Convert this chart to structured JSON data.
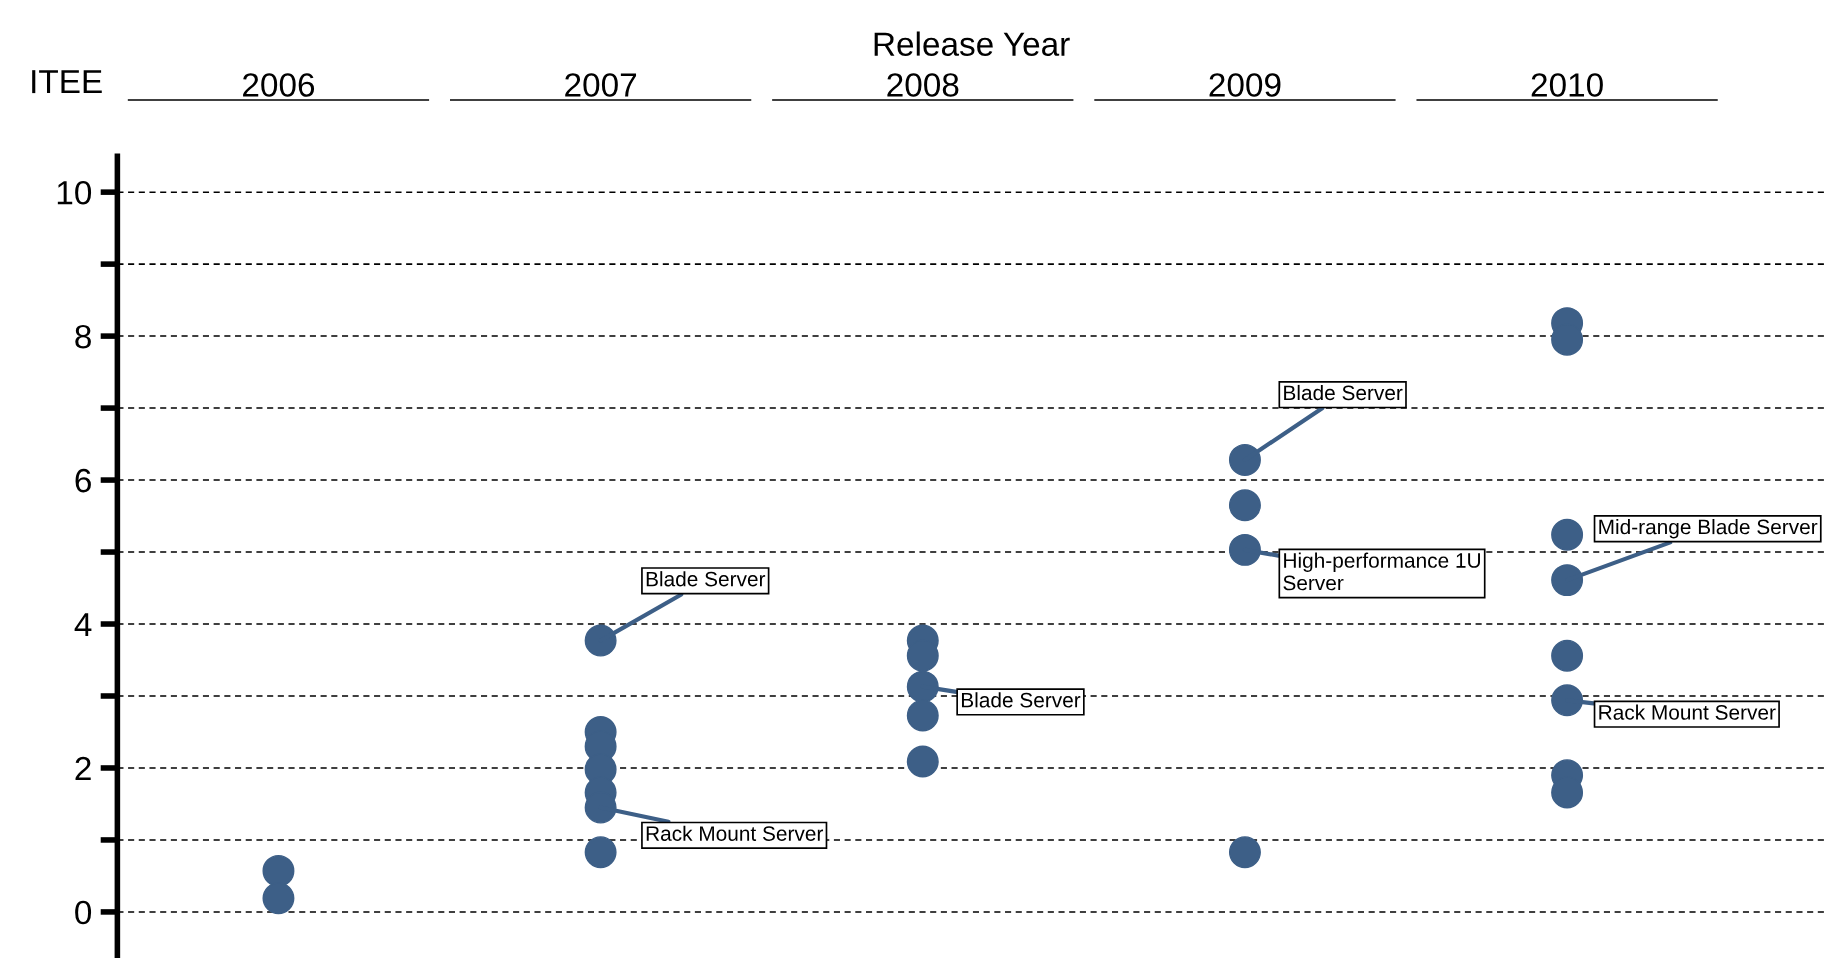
{
  "chart_data": {
    "type": "scatter",
    "xlabel": "Release Year",
    "ylabel": "ITEE",
    "series": [
      {
        "color": "#3d5f87",
        "x": [
          2006,
          2006,
          2007,
          2007,
          2007,
          2007,
          2007,
          2007,
          2007,
          2008,
          2008,
          2008,
          2008,
          2008,
          2009,
          2009,
          2009,
          2009,
          2010,
          2010,
          2010,
          2010,
          2010,
          2010,
          2010,
          2010
        ],
        "values": [
          0.57,
          0.19,
          3.77,
          2.5,
          2.3,
          1.98,
          1.66,
          1.45,
          0.83,
          3.77,
          3.56,
          3.13,
          2.73,
          2.09,
          6.28,
          5.65,
          5.03,
          0.83,
          8.18,
          7.95,
          5.24,
          4.61,
          3.56,
          2.94,
          1.9,
          1.66
        ]
      }
    ],
    "xlim": [
      2005.5,
      2010.8
    ],
    "xticks": [
      2006,
      2007,
      2008,
      2009,
      2010
    ],
    "ylim": [
      -0.64,
      10.5
    ],
    "yticks": [
      0,
      {
        "value": 1,
        "label": null
      },
      2,
      {
        "value": 3,
        "label": null
      },
      4,
      {
        "value": 5,
        "label": null
      },
      6,
      {
        "value": 7,
        "label": null
      },
      8,
      {
        "value": 9,
        "label": null
      },
      10
    ],
    "grid": "y",
    "marker": "circle",
    "annotations": [
      {
        "text": "Blade Server",
        "x": 2007,
        "y": 3.77
      },
      {
        "text": "Rack Mount Server",
        "x": 2007,
        "y": 1.45
      },
      {
        "text": "Blade Server",
        "x": 2008,
        "y": 3.13
      },
      {
        "text": "Blade Server",
        "x": 2009,
        "y": 6.28
      },
      {
        "text": "High-performance 1U\nServer",
        "x": 2009,
        "y": 5.03
      },
      {
        "text": "Mid-range Blade Server",
        "x": 2010,
        "y": 4.61
      },
      {
        "text": "Rack Mount Server",
        "x": 2010,
        "y": 2.94
      }
    ]
  }
}
